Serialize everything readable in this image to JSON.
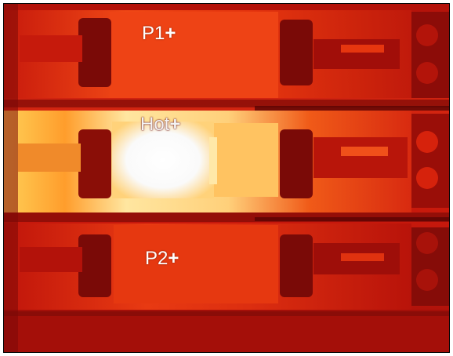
{
  "image": {
    "kind": "thermal-camera-view",
    "palette": {
      "dark": "#6f0606",
      "mid": "#d6200c",
      "warm": "#f25c18",
      "hot": "#ffb03a",
      "saturated": "#f6f6f6",
      "border": "#000000"
    }
  },
  "markers": [
    {
      "id": "p1",
      "label": "P1"
    },
    {
      "id": "hot",
      "label": "Hot"
    },
    {
      "id": "p2",
      "label": "P2"
    }
  ],
  "marker_glyph": "+"
}
